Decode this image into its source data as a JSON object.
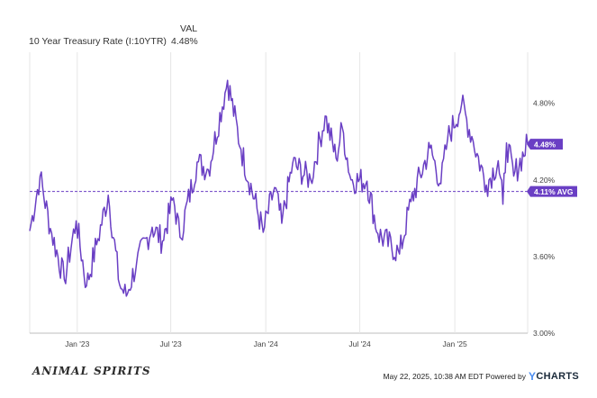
{
  "legend": {
    "header": "VAL",
    "series_name": "10 Year Treasury Rate (I:10YTR)",
    "series_value": "4.48%"
  },
  "footer": {
    "logo_text": "ANIMAL SPIRITS",
    "timestamp": "May 22, 2025, 10:38 AM EDT Powered by",
    "brand_y": "Y",
    "brand_rest": "CHARTS"
  },
  "colors": {
    "line": "#6a3fc4",
    "badge": "#6a3fc4",
    "grid": "#e6e6e6"
  },
  "chart_data": {
    "type": "line",
    "title": "",
    "xlabel": "",
    "ylabel": "",
    "x_range": [
      "2022-10-01",
      "2025-05-22"
    ],
    "ylim": [
      3.0,
      5.2
    ],
    "y_ticks": [
      3.0,
      3.6,
      4.2,
      4.8
    ],
    "y_tick_labels": [
      "3.00%",
      "3.60%",
      "4.20%",
      "4.80%"
    ],
    "x_ticks": [
      "2023-01-01",
      "2023-07-01",
      "2024-01-01",
      "2024-07-01",
      "2025-01-01"
    ],
    "x_tick_labels": [
      "Jan '23",
      "Jul '23",
      "Jan '24",
      "Jul '24",
      "Jan '25"
    ],
    "grid": "vertical",
    "average": {
      "value": 4.11,
      "label": "4.11% AVG"
    },
    "last_value_label": "4.48%",
    "series": [
      {
        "name": "10 Year Treasury Rate (I:10YTR)",
        "points": [
          [
            "2022-10-01",
            3.8
          ],
          [
            "2022-10-21",
            4.23
          ],
          [
            "2022-11-10",
            3.82
          ],
          [
            "2022-12-07",
            3.42
          ],
          [
            "2022-12-30",
            3.88
          ],
          [
            "2023-01-19",
            3.37
          ],
          [
            "2023-02-10",
            3.74
          ],
          [
            "2023-03-02",
            4.08
          ],
          [
            "2023-03-24",
            3.38
          ],
          [
            "2023-04-06",
            3.29
          ],
          [
            "2023-04-26",
            3.55
          ],
          [
            "2023-05-26",
            3.83
          ],
          [
            "2023-06-15",
            3.72
          ],
          [
            "2023-07-06",
            4.06
          ],
          [
            "2023-07-19",
            3.75
          ],
          [
            "2023-08-21",
            4.34
          ],
          [
            "2023-09-12",
            4.28
          ],
          [
            "2023-10-19",
            4.98
          ],
          [
            "2023-11-14",
            4.44
          ],
          [
            "2023-12-27",
            3.79
          ],
          [
            "2024-01-18",
            4.14
          ],
          [
            "2024-02-01",
            3.86
          ],
          [
            "2024-02-22",
            4.33
          ],
          [
            "2024-03-28",
            4.2
          ],
          [
            "2024-04-25",
            4.7
          ],
          [
            "2024-05-16",
            4.37
          ],
          [
            "2024-05-28",
            4.61
          ],
          [
            "2024-06-14",
            4.2
          ],
          [
            "2024-07-15",
            4.19
          ],
          [
            "2024-08-05",
            3.78
          ],
          [
            "2024-09-16",
            3.62
          ],
          [
            "2024-10-08",
            4.03
          ],
          [
            "2024-11-14",
            4.45
          ],
          [
            "2024-12-05",
            4.17
          ],
          [
            "2024-12-18",
            4.52
          ],
          [
            "2025-01-14",
            4.79
          ],
          [
            "2025-02-03",
            4.54
          ],
          [
            "2025-03-03",
            4.16
          ],
          [
            "2025-03-26",
            4.35
          ],
          [
            "2025-04-04",
            4.01
          ],
          [
            "2025-04-11",
            4.49
          ],
          [
            "2025-04-25",
            4.23
          ],
          [
            "2025-05-22",
            4.48
          ]
        ]
      }
    ]
  }
}
